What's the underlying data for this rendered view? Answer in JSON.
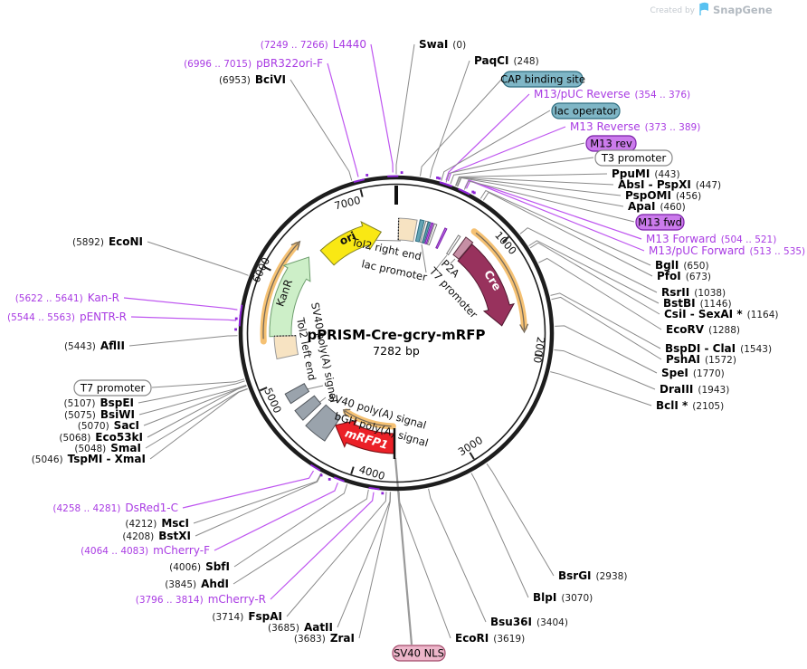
{
  "watermark": {
    "prefix": "Created by",
    "brand": "SnapGene"
  },
  "plasmid": {
    "name": "pPRISM-Cre-gcry-mRFP",
    "size_label": "7282 bp",
    "length_bp": 7282
  },
  "tick_labels": [
    "1000",
    "2000",
    "3000",
    "4000",
    "5000",
    "6000",
    "7000"
  ],
  "features": {
    "ori": "ori",
    "kanr": "KanR",
    "cre": "Cre",
    "mrfp1": "mRFP1",
    "tol2_right": "Tol2 right end",
    "lac_promoter": "lac promoter",
    "p2a": "P2A",
    "t7_promoter_internal": "T7 promoter",
    "tol2_left": "Tol2 left end",
    "sv40_polya_rotated": "SV40 poly(A) signal",
    "sv40_polya": "SV40 poly(A) signal",
    "bgh_polya": "bGH poly(A) signal"
  },
  "boxed_labels": [
    {
      "text": "CAP binding site",
      "kind": "teal"
    },
    {
      "text": "lac operator",
      "kind": "teal"
    },
    {
      "text": "M13 rev",
      "kind": "purple"
    },
    {
      "text": "T3 promoter",
      "kind": "white"
    },
    {
      "text": "M13 fwd",
      "kind": "purple"
    },
    {
      "text": "T7 promoter",
      "kind": "white"
    },
    {
      "text": "SV40 NLS",
      "kind": "pink"
    }
  ],
  "restriction_sites": [
    {
      "name": "SwaI",
      "loc": "(0)",
      "bp": 0
    },
    {
      "name": "PaqCI",
      "loc": "(248)",
      "bp": 248
    },
    {
      "name": "PpuMI",
      "loc": "(443)",
      "bp": 443
    },
    {
      "name": "AbsI - PspXI",
      "loc": "(447)",
      "bp": 447
    },
    {
      "name": "PspOMI",
      "loc": "(456)",
      "bp": 456
    },
    {
      "name": "ApaI",
      "loc": "(460)",
      "bp": 460
    },
    {
      "name": "BglI",
      "loc": "(650)",
      "bp": 650
    },
    {
      "name": "PfoI",
      "loc": "(673)",
      "bp": 673
    },
    {
      "name": "RsrII",
      "loc": "(1038)",
      "bp": 1038
    },
    {
      "name": "BstBI",
      "loc": "(1146)",
      "bp": 1146
    },
    {
      "name": "CsiI - SexAI *",
      "loc": "(1164)",
      "bp": 1164
    },
    {
      "name": "EcoRV",
      "loc": "(1288)",
      "bp": 1288
    },
    {
      "name": "BspDI - ClaI",
      "loc": "(1543)",
      "bp": 1543
    },
    {
      "name": "PshAI",
      "loc": "(1572)",
      "bp": 1572
    },
    {
      "name": "SpeI",
      "loc": "(1770)",
      "bp": 1770
    },
    {
      "name": "DraIII",
      "loc": "(1943)",
      "bp": 1943
    },
    {
      "name": "BclI *",
      "loc": "(2105)",
      "bp": 2105
    },
    {
      "name": "BsrGI",
      "loc": "(2938)",
      "bp": 2938
    },
    {
      "name": "BlpI",
      "loc": "(3070)",
      "bp": 3070
    },
    {
      "name": "Bsu36I",
      "loc": "(3404)",
      "bp": 3404
    },
    {
      "name": "EcoRI",
      "loc": "(3619)",
      "bp": 3619
    },
    {
      "name": "ZraI",
      "loc": "(3683)",
      "bp": 3683
    },
    {
      "name": "AatII",
      "loc": "(3685)",
      "bp": 3685
    },
    {
      "name": "FspAI",
      "loc": "(3714)",
      "bp": 3714
    },
    {
      "name": "AhdI",
      "loc": "(3845)",
      "bp": 3845
    },
    {
      "name": "SbfI",
      "loc": "(4006)",
      "bp": 4006
    },
    {
      "name": "BstXI",
      "loc": "(4208)",
      "bp": 4208
    },
    {
      "name": "MscI",
      "loc": "(4212)",
      "bp": 4212
    },
    {
      "name": "TspMI - XmaI",
      "loc": "(5046)",
      "bp": 5046
    },
    {
      "name": "SmaI",
      "loc": "(5048)",
      "bp": 5048
    },
    {
      "name": "Eco53kI",
      "loc": "(5068)",
      "bp": 5068
    },
    {
      "name": "SacI",
      "loc": "(5070)",
      "bp": 5070
    },
    {
      "name": "BsiWI",
      "loc": "(5075)",
      "bp": 5075
    },
    {
      "name": "BspEI",
      "loc": "(5107)",
      "bp": 5107
    },
    {
      "name": "AflII",
      "loc": "(5443)",
      "bp": 5443
    },
    {
      "name": "EcoNI",
      "loc": "(5892)",
      "bp": 5892
    },
    {
      "name": "BciVI",
      "loc": "(6953)",
      "bp": 6953
    }
  ],
  "primers": [
    {
      "name": "L4440",
      "loc": "(7249 .. 7266)",
      "bp": 7257
    },
    {
      "name": "pBR322ori-F",
      "loc": "(6996 .. 7015)",
      "bp": 7005
    },
    {
      "name": "M13/pUC Reverse",
      "loc": "(354 .. 376)",
      "bp": 365
    },
    {
      "name": "M13 Reverse",
      "loc": "(373 .. 389)",
      "bp": 381
    },
    {
      "name": "M13 Forward",
      "loc": "(504 .. 521)",
      "bp": 512
    },
    {
      "name": "M13/pUC Forward",
      "loc": "(513 .. 535)",
      "bp": 524
    },
    {
      "name": "mCherry-R",
      "loc": "(3796 .. 3814)",
      "bp": 3805
    },
    {
      "name": "mCherry-F",
      "loc": "(4064 .. 4083)",
      "bp": 4073
    },
    {
      "name": "DsRed1-C",
      "loc": "(4258 .. 4281)",
      "bp": 4269
    },
    {
      "name": "pENTR-R",
      "loc": "(5544 .. 5563)",
      "bp": 5553
    },
    {
      "name": "Kan-R",
      "loc": "(5622 .. 5641)",
      "bp": 5631
    }
  ],
  "colors": {
    "purple_label": "#A93BE3",
    "purple_line": "#BE55F0",
    "gray_line": "#8a8a8a",
    "teal_pill": "#7FB6C6",
    "purple_pill": "#CB7BEC",
    "pink_pill": "#EDB6CA",
    "ori_yellow": "#F9E814",
    "kanr_green": "#CDEFC8",
    "cre_maroon": "#98325D",
    "mrfp1_red": "#EB2027",
    "orange_arc": "#F5C173",
    "tan_box": "#F7E3C2",
    "gray_box": "#9AA3AC"
  }
}
